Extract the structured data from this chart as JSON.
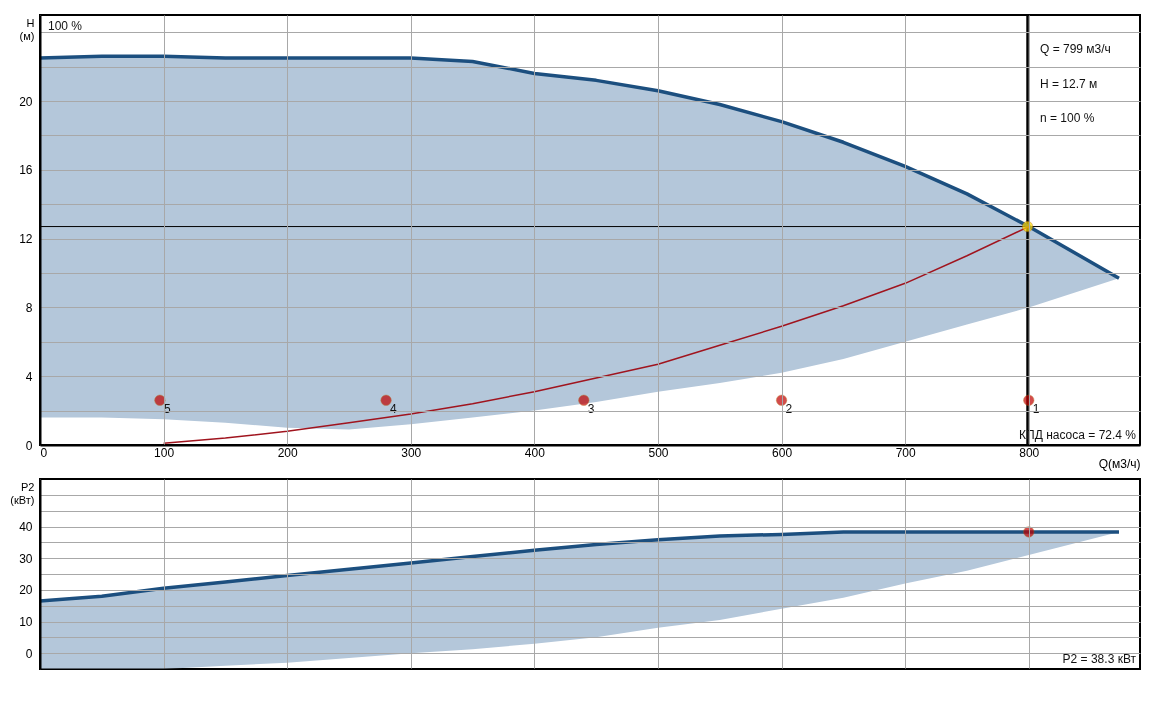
{
  "chart_data": [
    {
      "type": "line",
      "ylabel": "H (м)",
      "xlabel": "Q(м3/ч)",
      "xlim": [
        0,
        890
      ],
      "ylim": [
        0,
        25
      ],
      "xticks": [
        0,
        100,
        200,
        300,
        400,
        500,
        600,
        700,
        800
      ],
      "yticks": [
        0,
        {
          "value": 2,
          "label": null
        },
        4,
        {
          "value": 6,
          "label": null
        },
        8,
        {
          "value": 10,
          "label": null
        },
        12,
        {
          "value": 14,
          "label": null
        },
        16,
        {
          "value": 18,
          "label": null
        },
        20,
        {
          "value": 22,
          "label": null
        },
        {
          "value": 24,
          "label": null
        }
      ],
      "grid": true,
      "tick_labels": "xy",
      "series": [
        {
          "type": "line",
          "color": "#1c4f7f",
          "x": [
            0,
            50,
            100,
            150,
            200,
            250,
            300,
            350,
            400,
            450,
            500,
            550,
            600,
            650,
            700,
            750,
            800,
            873
          ],
          "values": [
            22.5,
            22.6,
            22.6,
            22.5,
            22.5,
            22.5,
            22.5,
            22.3,
            21.6,
            21.2,
            20.6,
            19.8,
            18.8,
            17.6,
            16.2,
            14.6,
            12.7,
            9.7
          ],
          "lower": [
            1.6,
            1.6,
            1.5,
            1.3,
            1.0,
            0.9,
            1.2,
            1.6,
            2.0,
            2.5,
            3.1,
            3.6,
            4.2,
            5.0,
            6.0,
            7.0,
            8.0,
            9.7
          ],
          "upper": [
            22.5,
            22.6,
            22.6,
            22.5,
            22.5,
            22.5,
            22.5,
            22.3,
            21.6,
            21.2,
            20.6,
            19.8,
            18.8,
            17.6,
            16.2,
            14.6,
            12.7,
            9.7
          ]
        },
        {
          "type": "line",
          "color": "#a0141e",
          "x": [
            100,
            150,
            200,
            250,
            300,
            350,
            400,
            450,
            500,
            550,
            600,
            650,
            700,
            750,
            800
          ],
          "values": [
            0.1,
            0.4,
            0.8,
            1.3,
            1.8,
            2.4,
            3.1,
            3.9,
            4.7,
            5.8,
            6.9,
            8.1,
            9.4,
            11.0,
            12.7
          ]
        },
        {
          "type": "scatter",
          "color": "#c00000",
          "marker": "circle",
          "x": [
            97,
            280,
            440,
            600,
            800
          ],
          "values": [
            2.6,
            2.6,
            2.6,
            2.6,
            2.6
          ]
        },
        {
          "type": "scatter",
          "color": "#ffd700",
          "marker": "circle",
          "x": [
            799
          ],
          "values": [
            12.7
          ]
        }
      ],
      "ref_lines": [
        {
          "axis": "y",
          "value": 12.7,
          "color": "#000000"
        },
        {
          "axis": "x",
          "value": 799,
          "color": "#000000"
        }
      ],
      "annotations": [
        {
          "text": "5",
          "x": 97,
          "y": 2.6
        },
        {
          "text": "4",
          "x": 280,
          "y": 2.6
        },
        {
          "text": "3",
          "x": 440,
          "y": 2.6
        },
        {
          "text": "2",
          "x": 600,
          "y": 2.6
        },
        {
          "text": "1",
          "x": 800,
          "y": 2.6
        },
        "100 %",
        "Q = 799 м3/ч",
        "H = 12.7 м",
        "n = 100 %",
        "КПД насоса = 72.4 %"
      ]
    },
    {
      "type": "line",
      "ylabel": "P2 (кВт)",
      "xlim": [
        0,
        890
      ],
      "ylim": [
        -5,
        55
      ],
      "xticks": [
        0,
        100,
        200,
        300,
        400,
        500,
        600,
        700,
        800
      ],
      "yticks": [
        0,
        {
          "value": 5,
          "label": null
        },
        10,
        {
          "value": 15,
          "label": null
        },
        20,
        {
          "value": 25,
          "label": null
        },
        30,
        {
          "value": 35,
          "label": null
        },
        40,
        {
          "value": 45,
          "label": null
        },
        {
          "value": 50,
          "label": null
        }
      ],
      "grid": true,
      "tick_labels": "y",
      "series": [
        {
          "type": "line",
          "color": "#1c4f7f",
          "x": [
            0,
            50,
            100,
            150,
            200,
            250,
            300,
            350,
            400,
            450,
            500,
            550,
            600,
            650,
            700,
            750,
            800,
            873
          ],
          "values": [
            16.5,
            18,
            20.5,
            22.5,
            24.5,
            26.5,
            28.5,
            30.5,
            32.5,
            34.3,
            35.8,
            37,
            37.5,
            38.3,
            38.3,
            38.3,
            38.3,
            38.3
          ],
          "lower": [
            -5,
            -5,
            -5,
            -4,
            -3,
            -1.5,
            0,
            1.2,
            3,
            5,
            8,
            10.5,
            14,
            17.5,
            22,
            26,
            31,
            38.3
          ],
          "upper": [
            16.5,
            18,
            20.5,
            22.5,
            24.5,
            26.5,
            28.5,
            30.5,
            32.5,
            34.3,
            35.8,
            37,
            37.5,
            38.3,
            38.3,
            38.3,
            38.3,
            38.3
          ]
        },
        {
          "type": "scatter",
          "color": "#c00000",
          "marker": "circle",
          "x": [
            800
          ],
          "values": [
            38.3
          ]
        }
      ],
      "annotations": [
        "P2 = 38.3 кВт"
      ]
    }
  ]
}
